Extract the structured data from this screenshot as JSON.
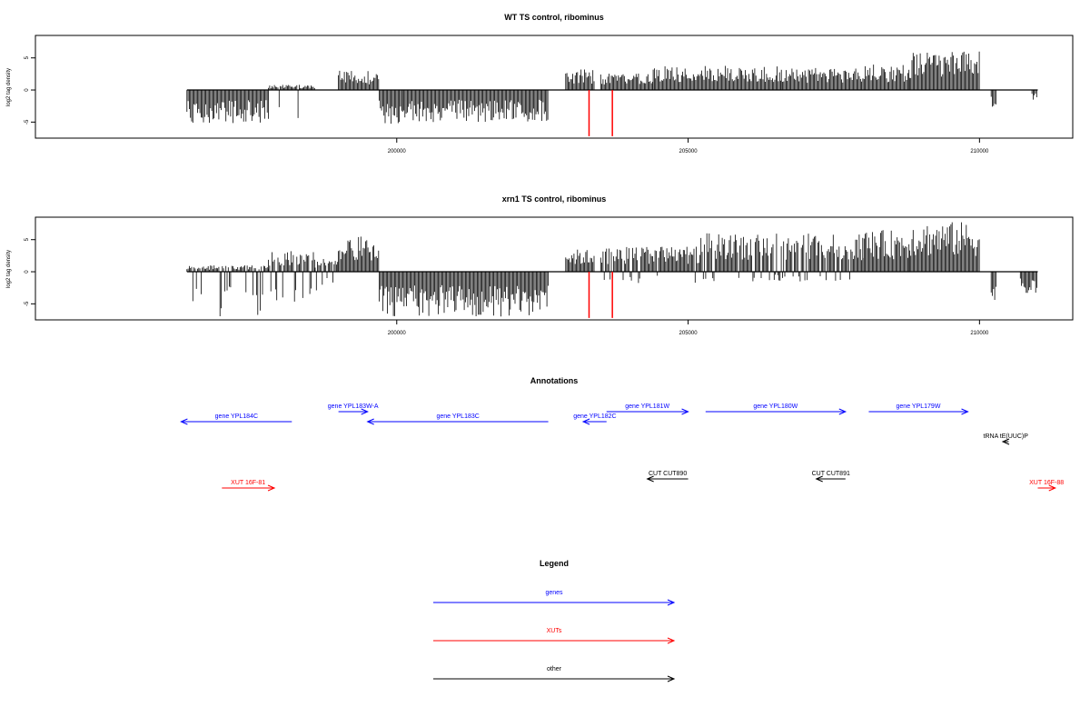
{
  "chart_data": [
    {
      "type": "bar",
      "title": "WT TS control, ribominus",
      "xlabel": "",
      "ylabel": "log2 tag density",
      "xlim": [
        193800,
        211600
      ],
      "ylim": [
        -7.5,
        8.5
      ],
      "x_ticks": [
        200000,
        205000,
        210000
      ],
      "x_tick_labels": [
        "200000",
        "205000",
        "210000"
      ],
      "y_ticks": [
        5,
        0,
        -5
      ],
      "y_tick_labels": [
        "5",
        "0",
        "-5"
      ],
      "baseline": [
        196400,
        211000
      ],
      "markers": [
        {
          "x": 203300,
          "y": -7.2,
          "color": "#ff0000"
        },
        {
          "x": 203700,
          "y": -7.2,
          "color": "#ff0000"
        }
      ],
      "bars": [
        {
          "x_start": 196400,
          "x_end": 197800,
          "min": -5.2,
          "max": -2.4
        },
        {
          "x_start": 197800,
          "x_end": 198600,
          "min": -4.8,
          "max": 0.8
        },
        {
          "x_start": 199000,
          "x_end": 199700,
          "min": 0.8,
          "max": 3.0
        },
        {
          "x_start": 199700,
          "x_end": 200100,
          "min": -5.5,
          "max": -1.5
        },
        {
          "x_start": 200100,
          "x_end": 202600,
          "min": -5.0,
          "max": -1.8
        },
        {
          "x_start": 202900,
          "x_end": 203400,
          "min": 0.8,
          "max": 3.2
        },
        {
          "x_start": 203500,
          "x_end": 204400,
          "min": 0.6,
          "max": 2.6
        },
        {
          "x_start": 204400,
          "x_end": 206600,
          "min": 0.5,
          "max": 3.8
        },
        {
          "x_start": 206600,
          "x_end": 208000,
          "min": 0.5,
          "max": 3.5
        },
        {
          "x_start": 208000,
          "x_end": 208800,
          "min": 1.0,
          "max": 4.0
        },
        {
          "x_start": 208800,
          "x_end": 210000,
          "min": 1.5,
          "max": 6.0
        },
        {
          "x_start": 210200,
          "x_end": 210300,
          "min": -2.6,
          "max": -0.2
        },
        {
          "x_start": 210900,
          "x_end": 211000,
          "min": -1.6,
          "max": -0.2
        }
      ]
    },
    {
      "type": "bar",
      "title": "xrn1 TS control, ribominus",
      "xlabel": "",
      "ylabel": "log2 tag density",
      "xlim": [
        193800,
        211600
      ],
      "ylim": [
        -7.5,
        8.5
      ],
      "x_ticks": [
        200000,
        205000,
        210000
      ],
      "x_tick_labels": [
        "200000",
        "205000",
        "210000"
      ],
      "y_ticks": [
        5,
        0,
        -5
      ],
      "y_tick_labels": [
        "5",
        "0",
        "-5"
      ],
      "baseline": [
        196400,
        211000
      ],
      "markers": [
        {
          "x": 203300,
          "y": -7.2,
          "color": "#ff0000"
        },
        {
          "x": 203700,
          "y": -7.2,
          "color": "#ff0000"
        }
      ],
      "bars": [
        {
          "x_start": 196400,
          "x_end": 197800,
          "min": -7.2,
          "max": 1.0
        },
        {
          "x_start": 197800,
          "x_end": 198600,
          "min": -4.8,
          "max": 3.2
        },
        {
          "x_start": 198600,
          "x_end": 199000,
          "min": -3.0,
          "max": 2.0
        },
        {
          "x_start": 199000,
          "x_end": 199700,
          "min": 0.5,
          "max": 5.5
        },
        {
          "x_start": 199700,
          "x_end": 202600,
          "min": -7.0,
          "max": -1.0
        },
        {
          "x_start": 202900,
          "x_end": 203400,
          "min": 0.5,
          "max": 3.5
        },
        {
          "x_start": 203500,
          "x_end": 205200,
          "min": -1.8,
          "max": 4.0
        },
        {
          "x_start": 205200,
          "x_end": 208000,
          "min": -1.5,
          "max": 6.0
        },
        {
          "x_start": 208000,
          "x_end": 208800,
          "min": 0.5,
          "max": 6.5
        },
        {
          "x_start": 208800,
          "x_end": 210000,
          "min": 1.0,
          "max": 7.8
        },
        {
          "x_start": 210200,
          "x_end": 210300,
          "min": -4.8,
          "max": -0.5
        },
        {
          "x_start": 210700,
          "x_end": 211000,
          "min": -3.5,
          "max": -0.5
        }
      ]
    },
    {
      "type": "other",
      "title": "Annotations",
      "xlim": [
        193800,
        211600
      ],
      "features": [
        {
          "label": "gene YPL184C",
          "x_start": 196300,
          "x_end": 198200,
          "direction": "left",
          "row": "upper",
          "color": "#0000ff"
        },
        {
          "label": "gene YPL183W-A",
          "x_start": 199000,
          "x_end": 199500,
          "direction": "right",
          "row": "top",
          "color": "#0000ff"
        },
        {
          "label": "gene YPL183C",
          "x_start": 199500,
          "x_end": 202600,
          "direction": "left",
          "row": "upper",
          "color": "#0000ff"
        },
        {
          "label": "gene YPL182C",
          "x_start": 203200,
          "x_end": 203600,
          "direction": "left",
          "row": "upper",
          "color": "#0000ff"
        },
        {
          "label": "gene YPL181W",
          "x_start": 203600,
          "x_end": 205000,
          "direction": "right",
          "row": "top",
          "color": "#0000ff"
        },
        {
          "label": "gene YPL180W",
          "x_start": 205300,
          "x_end": 207700,
          "direction": "right",
          "row": "top",
          "color": "#0000ff"
        },
        {
          "label": "gene YPL179W",
          "x_start": 208100,
          "x_end": 209800,
          "direction": "right",
          "row": "top",
          "color": "#0000ff"
        },
        {
          "label": "tRNA tE(UUC)P",
          "x_start": 210400,
          "x_end": 210500,
          "direction": "left",
          "row": "middle",
          "color": "#000000"
        },
        {
          "label": "CUT CUT890",
          "x_start": 204300,
          "x_end": 205000,
          "direction": "left",
          "row": "cut",
          "color": "#000000"
        },
        {
          "label": "CUT CUT891",
          "x_start": 207200,
          "x_end": 207700,
          "direction": "left",
          "row": "cut",
          "color": "#000000"
        },
        {
          "label": "XUT 16F-81",
          "x_start": 197000,
          "x_end": 197900,
          "direction": "right",
          "row": "xut",
          "color": "#ff0000"
        },
        {
          "label": "XUT 16F-88",
          "x_start": 211000,
          "x_end": 211300,
          "direction": "right",
          "row": "xut",
          "color": "#ff0000"
        }
      ]
    },
    {
      "type": "other",
      "title": "Legend",
      "entries": [
        {
          "label": "genes",
          "color": "#0000ff"
        },
        {
          "label": "XUTs",
          "color": "#ff0000"
        },
        {
          "label": "other",
          "color": "#000000"
        }
      ]
    }
  ]
}
